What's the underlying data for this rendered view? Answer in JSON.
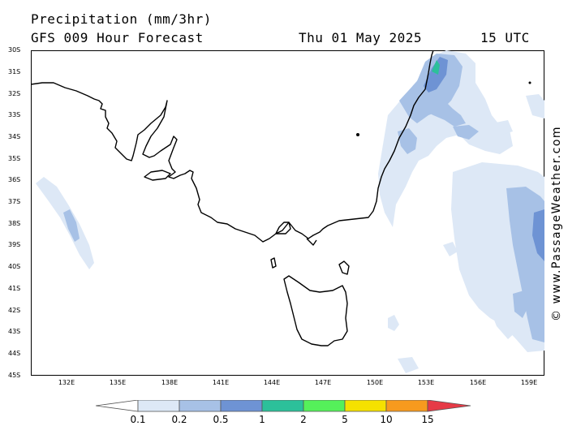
{
  "header": {
    "title": "Precipitation (mm/3hr)",
    "subtitle": "GFS 009 Hour Forecast",
    "date": "Thu 01 May 2025",
    "time": "15 UTC"
  },
  "credit": "© www.PassageWeather.com",
  "map": {
    "region": "South-eastern Australia, Bass Strait and Tasmania",
    "lat_labels": [
      "30S",
      "31S",
      "32S",
      "33S",
      "34S",
      "35S",
      "36S",
      "37S",
      "38S",
      "39S",
      "40S",
      "41S",
      "42S",
      "43S",
      "44S",
      "45S"
    ],
    "lon_labels": [
      "132E",
      "135E",
      "138E",
      "141E",
      "144E",
      "147E",
      "150E",
      "153E",
      "156E",
      "159E"
    ],
    "land_color": "#ffffff",
    "coastline_color": "#000000"
  },
  "legend": {
    "labels": [
      "0.1",
      "0.2",
      "0.5",
      "1",
      "2",
      "5",
      "10",
      "15"
    ],
    "colors": [
      "#ffffff",
      "#dde8f6",
      "#a7c1e6",
      "#6e93d4",
      "#2cc09a",
      "#55f05a",
      "#f5e100",
      "#f79a1e",
      "#e63a46"
    ],
    "units": "mm/3hr"
  }
}
